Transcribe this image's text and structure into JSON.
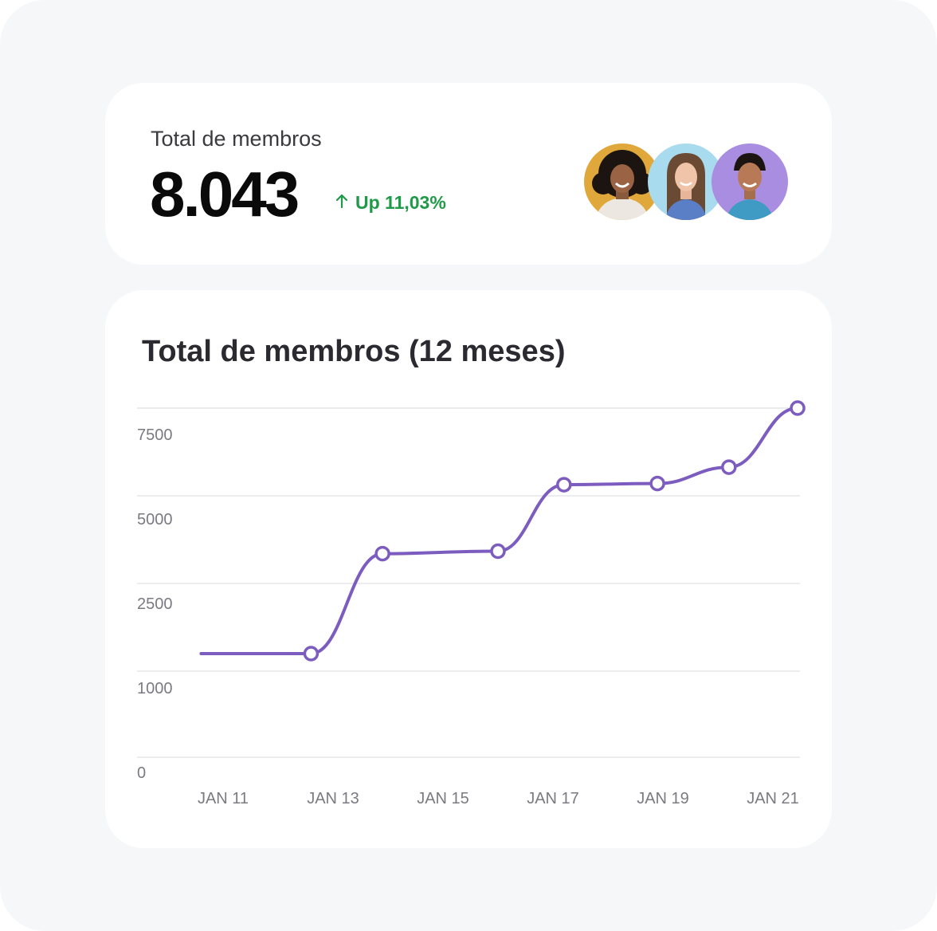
{
  "summary": {
    "label": "Total de membros",
    "value": "8.043",
    "trend": "Up 11,03%",
    "trend_icon": "arrow-up-icon",
    "trend_color": "#1f9a48",
    "avatars": [
      {
        "name": "avatar-1",
        "bg": "#e0a83a"
      },
      {
        "name": "avatar-2",
        "bg": "#a9dbee"
      },
      {
        "name": "avatar-3",
        "bg": "#a98de0"
      }
    ]
  },
  "chart_data": {
    "type": "line",
    "title": "Total de membros (12 meses)",
    "xlabel": "",
    "ylabel": "",
    "x_ticks": [
      "JAN 11",
      "JAN 13",
      "JAN 15",
      "JAN 17",
      "JAN 19",
      "JAN 21"
    ],
    "y_ticks": [
      "7500",
      "5000",
      "2500",
      "1000",
      "0"
    ],
    "line_color": "#7c5cbf",
    "grid": true,
    "series": [
      {
        "points": [
          {
            "x": 10.6,
            "y": 1300,
            "marker": false
          },
          {
            "x": 12.6,
            "y": 1300,
            "marker": true
          },
          {
            "x": 13.9,
            "y": 3350,
            "marker": true
          },
          {
            "x": 16.0,
            "y": 3420,
            "marker": true
          },
          {
            "x": 17.2,
            "y": 5380,
            "marker": true
          },
          {
            "x": 18.9,
            "y": 5420,
            "marker": true
          },
          {
            "x": 20.2,
            "y": 5980,
            "marker": true
          },
          {
            "x": 21.45,
            "y": 8043,
            "marker": true
          }
        ]
      }
    ]
  }
}
